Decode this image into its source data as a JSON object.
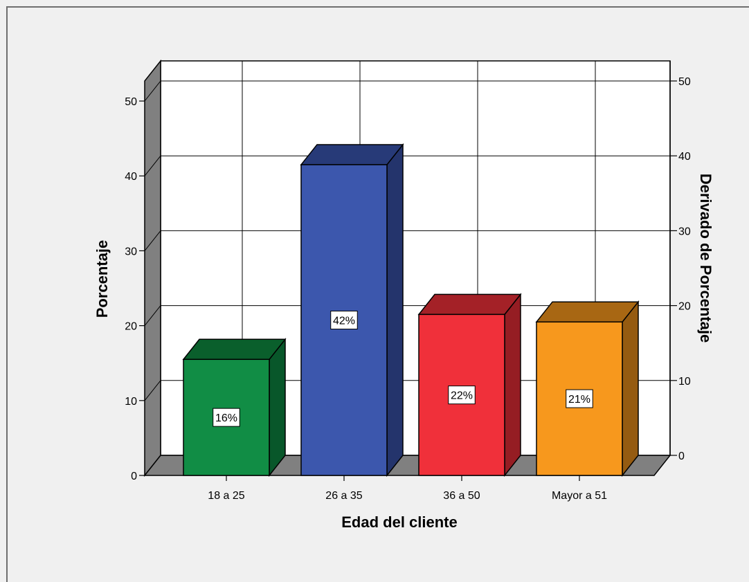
{
  "chart_data": {
    "type": "bar",
    "title": "",
    "categories": [
      "18 a 25",
      "26 a 35",
      "36 a 50",
      "Mayor a 51"
    ],
    "values": [
      15.5,
      41.5,
      21.5,
      20.5
    ],
    "data_labels": [
      "16%",
      "42%",
      "22%",
      "21%"
    ],
    "xlabel": "Edad del cliente",
    "ylabel": "Porcentaje",
    "ylabel_right": "Derivado de Porcentaje",
    "ylim": [
      0,
      50
    ],
    "yticks": [
      "0",
      "10",
      "20",
      "30",
      "40",
      "50"
    ],
    "grid": true,
    "style": "3d",
    "colors": {
      "bars": [
        "#118d45",
        "#3c57ad",
        "#f0303a",
        "#f7981d"
      ],
      "bar_sides": [
        "#08572a",
        "#24346c",
        "#951d23",
        "#955b11"
      ],
      "bar_tops": [
        "#0a5f2c",
        "#273a78",
        "#a42127",
        "#a86713"
      ],
      "floor": "#808080",
      "wall_side": "#808080",
      "plot_bg": "#ffffff",
      "frame_bg": "#f0f0f0"
    }
  }
}
